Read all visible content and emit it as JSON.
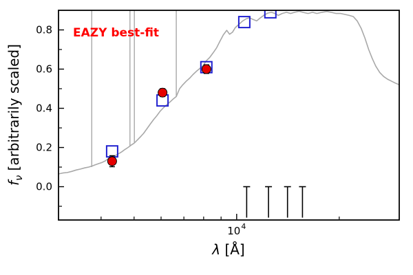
{
  "labels": {
    "xlabel_symbol": "λ",
    "xlabel_unit": " [Å]",
    "ylabel_symbol": "f",
    "ylabel_subscript": "ν",
    "ylabel_rest": " [arbitrarily scaled]"
  },
  "chart_data": {
    "type": "line",
    "title": "",
    "annotation": "EAZY best-fit",
    "xlabel": "λ [Å]",
    "ylabel": "f_ν [arbitrarily scaled]",
    "x_scale": "log",
    "grid": false,
    "legend": "none",
    "xlim": [
      3000,
      30000
    ],
    "ylim": [
      -0.17,
      0.9
    ],
    "yticks": [
      0.0,
      0.2,
      0.4,
      0.6,
      0.8
    ],
    "yticks_minor": [
      -0.1,
      0.1,
      0.3,
      0.5,
      0.7
    ],
    "xtick_major": {
      "value": 10000,
      "base": "10",
      "exponent": "4"
    },
    "xticks_minor": [
      4000,
      5000,
      6000,
      7000,
      8000,
      9000,
      20000
    ],
    "colors": {
      "spectrum": "#a8a8a8",
      "model_photometry": "#2020d0",
      "observed_photometry": "#e50000",
      "limits": "#000000",
      "annotation": "#ff0000",
      "frame": "#000000"
    },
    "spectrum": [
      [
        3000,
        0.065
      ],
      [
        3090,
        0.07
      ],
      [
        3180,
        0.072
      ],
      [
        3280,
        0.078
      ],
      [
        3380,
        0.085
      ],
      [
        3480,
        0.09
      ],
      [
        3580,
        0.096
      ],
      [
        3680,
        0.1
      ],
      [
        3760,
        0.105
      ],
      [
        3850,
        0.112
      ],
      [
        3940,
        0.118
      ],
      [
        4030,
        0.124
      ],
      [
        4120,
        0.132
      ],
      [
        4210,
        0.145
      ],
      [
        4300,
        0.152
      ],
      [
        4400,
        0.158
      ],
      [
        4500,
        0.168
      ],
      [
        4600,
        0.178
      ],
      [
        4700,
        0.19
      ],
      [
        4800,
        0.2
      ],
      [
        4900,
        0.212
      ],
      [
        5000,
        0.222
      ],
      [
        5110,
        0.238
      ],
      [
        5220,
        0.255
      ],
      [
        5330,
        0.272
      ],
      [
        5450,
        0.295
      ],
      [
        5570,
        0.318
      ],
      [
        5700,
        0.342
      ],
      [
        5830,
        0.362
      ],
      [
        5960,
        0.385
      ],
      [
        6090,
        0.402
      ],
      [
        6230,
        0.418
      ],
      [
        6370,
        0.432
      ],
      [
        6510,
        0.447
      ],
      [
        6650,
        0.46
      ],
      [
        6800,
        0.5
      ],
      [
        6950,
        0.52
      ],
      [
        7110,
        0.538
      ],
      [
        7270,
        0.553
      ],
      [
        7440,
        0.572
      ],
      [
        7610,
        0.588
      ],
      [
        7790,
        0.603
      ],
      [
        7970,
        0.618
      ],
      [
        8150,
        0.643
      ],
      [
        8340,
        0.66
      ],
      [
        8530,
        0.683
      ],
      [
        8730,
        0.708
      ],
      [
        8930,
        0.742
      ],
      [
        9140,
        0.775
      ],
      [
        9350,
        0.798
      ],
      [
        9530,
        0.778
      ],
      [
        9720,
        0.788
      ],
      [
        9910,
        0.812
      ],
      [
        10150,
        0.828
      ],
      [
        10400,
        0.845
      ],
      [
        10650,
        0.856
      ],
      [
        10900,
        0.862
      ],
      [
        11150,
        0.854
      ],
      [
        11450,
        0.846
      ],
      [
        11750,
        0.862
      ],
      [
        12050,
        0.876
      ],
      [
        12350,
        0.886
      ],
      [
        12650,
        0.89
      ],
      [
        12950,
        0.884
      ],
      [
        13250,
        0.874
      ],
      [
        13600,
        0.884
      ],
      [
        14000,
        0.89
      ],
      [
        14400,
        0.884
      ],
      [
        14800,
        0.89
      ],
      [
        15250,
        0.895
      ],
      [
        15700,
        0.889
      ],
      [
        16200,
        0.884
      ],
      [
        16700,
        0.89
      ],
      [
        17200,
        0.884
      ],
      [
        17800,
        0.89
      ],
      [
        18400,
        0.894
      ],
      [
        19000,
        0.889
      ],
      [
        19600,
        0.884
      ],
      [
        20200,
        0.884
      ],
      [
        20800,
        0.879
      ],
      [
        21400,
        0.874
      ],
      [
        22000,
        0.868
      ],
      [
        22600,
        0.845
      ],
      [
        23200,
        0.808
      ],
      [
        23800,
        0.758
      ],
      [
        24400,
        0.7
      ],
      [
        25000,
        0.654
      ],
      [
        25600,
        0.615
      ],
      [
        26300,
        0.583
      ],
      [
        27000,
        0.562
      ],
      [
        27700,
        0.549
      ],
      [
        28500,
        0.538
      ],
      [
        29200,
        0.529
      ],
      [
        30000,
        0.52
      ]
    ],
    "emission_lines": [
      {
        "x": 3755,
        "y0": 0.1,
        "y1": 1.0
      },
      {
        "x": 4862,
        "y0": 0.205,
        "y1": 1.0
      },
      {
        "x": 5008,
        "y0": 0.225,
        "y1": 1.0
      },
      {
        "x": 6650,
        "y0": 0.46,
        "y1": 1.0
      }
    ],
    "model_photometry": {
      "marker": "open-square",
      "points": [
        [
          4310,
          0.18
        ],
        [
          6060,
          0.44
        ],
        [
          8150,
          0.61
        ],
        [
          10530,
          0.84
        ],
        [
          12560,
          0.89
        ]
      ]
    },
    "observed_photometry": {
      "marker": "filled-circle",
      "points": [
        [
          4310,
          0.13
        ],
        [
          6060,
          0.48
        ],
        [
          8150,
          0.6
        ]
      ],
      "yerr": [
        0.028,
        0.02,
        0.022
      ]
    },
    "upper_limits": {
      "x": [
        10700,
        12400,
        14100,
        15600
      ],
      "y": 0.0
    }
  }
}
